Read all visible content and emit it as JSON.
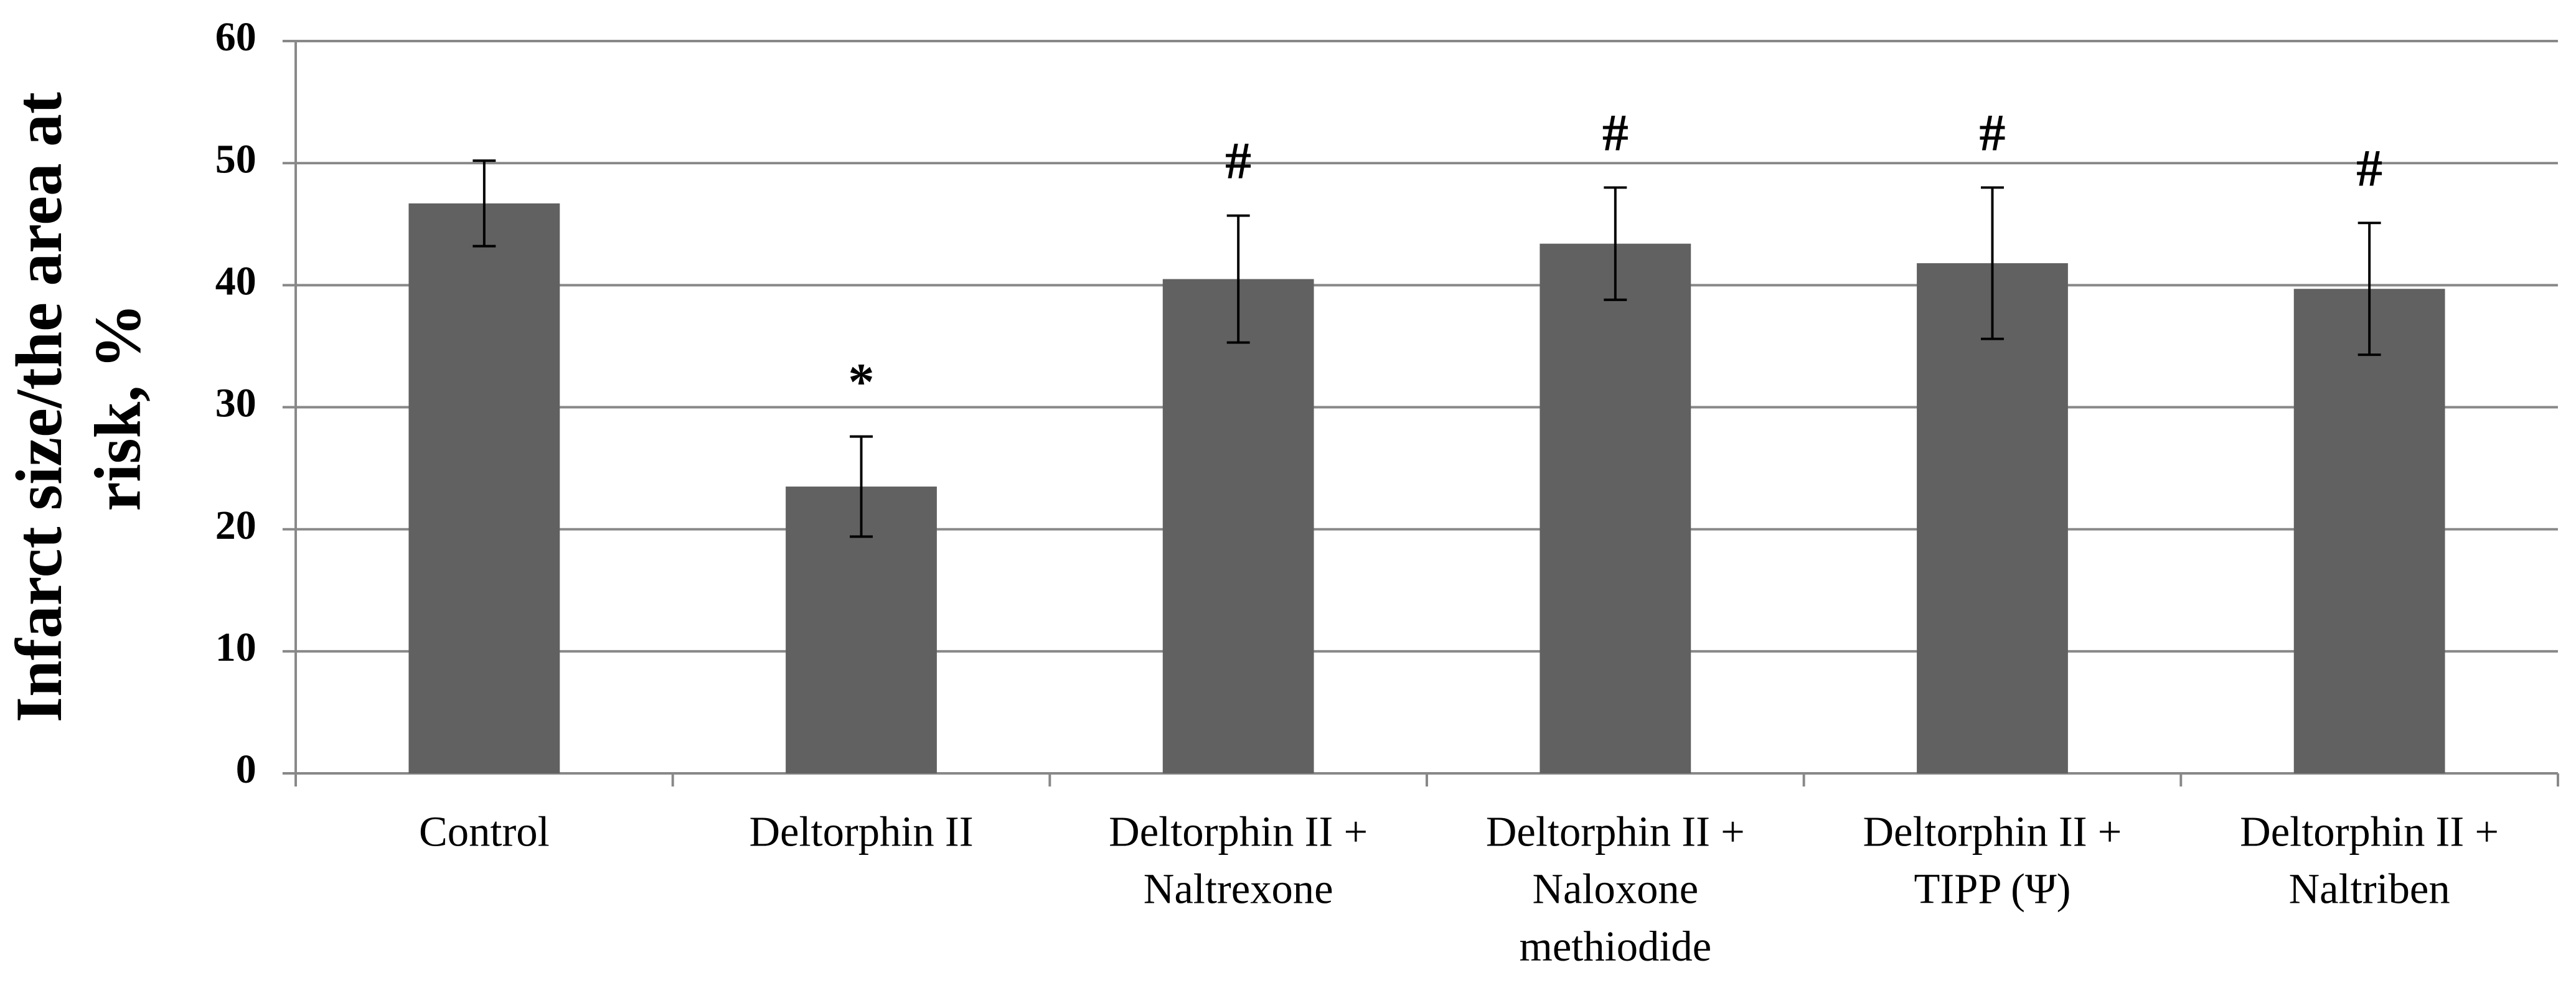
{
  "chart_data": {
    "type": "bar",
    "ylabel": [
      "Infarct size/the area at",
      "risk, %"
    ],
    "categories": [
      [
        "Control"
      ],
      [
        "Deltorphin II"
      ],
      [
        "Deltorphin II +",
        "Naltrexone"
      ],
      [
        "Deltorphin II +",
        "Naloxone",
        "methiodide"
      ],
      [
        "Deltorphin II +",
        "TIPP (Ψ)"
      ],
      [
        "Deltorphin II +",
        "Naltriben"
      ]
    ],
    "values": [
      46.7,
      23.5,
      40.5,
      43.4,
      41.8,
      39.7
    ],
    "errors": [
      3.5,
      4.1,
      5.2,
      4.6,
      6.2,
      5.4
    ],
    "annotations": [
      null,
      "*",
      "#",
      "#",
      "#",
      "#"
    ],
    "color": "#616161",
    "ylim": [
      0,
      60
    ],
    "yticks": [
      0,
      10,
      20,
      30,
      40,
      50,
      60
    ],
    "grid": true
  }
}
